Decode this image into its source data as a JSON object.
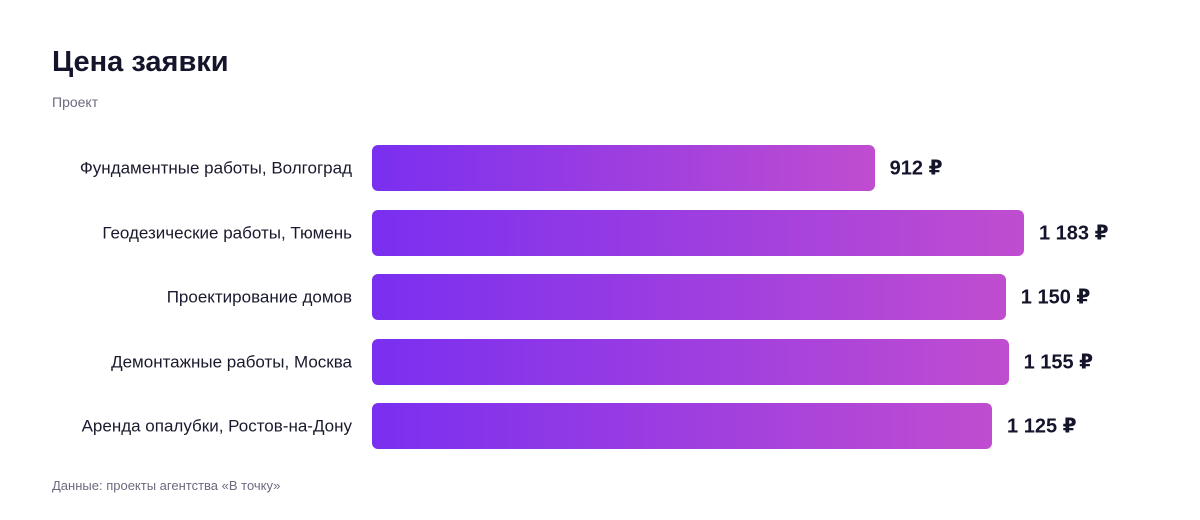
{
  "chart_data": {
    "type": "bar",
    "orientation": "horizontal",
    "title": "Цена заявки",
    "subtitle": "Проект",
    "categories": [
      "Фундаментные работы, Волгоград",
      "Геодезические работы, Тюмень",
      "Проектирование домов",
      "Демонтажные работы, Москва",
      "Аренда опалубки, Ростов-на-Дону"
    ],
    "values": [
      912,
      1183,
      1150,
      1155,
      1125
    ],
    "value_labels": [
      "912 ₽",
      "1 183 ₽",
      "1 150 ₽",
      "1 155 ₽",
      "1 125 ₽"
    ],
    "gradient": [
      "#7a2ff0",
      "#c04dd0"
    ],
    "source": "Данные: проекты агентства «В точку»"
  }
}
